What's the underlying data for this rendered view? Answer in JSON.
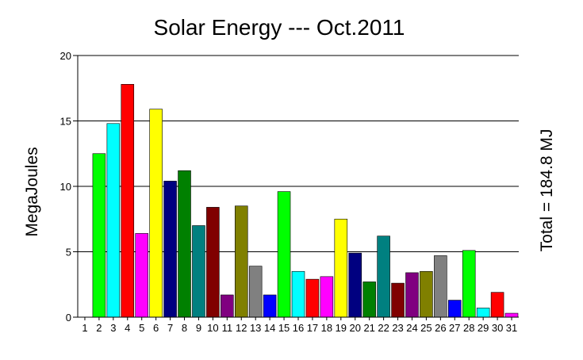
{
  "chart_data": {
    "type": "bar",
    "title": "Solar Energy --- Oct.2011",
    "ylabel": "MegaJoules",
    "right_label": "Total = 184.8 MJ",
    "xlabel": "",
    "ylim": [
      0,
      20
    ],
    "yticks": [
      0,
      5,
      10,
      15,
      20
    ],
    "grid": true,
    "categories": [
      "1",
      "2",
      "3",
      "4",
      "5",
      "6",
      "7",
      "8",
      "9",
      "10",
      "11",
      "12",
      "13",
      "14",
      "15",
      "16",
      "17",
      "18",
      "19",
      "20",
      "21",
      "22",
      "23",
      "24",
      "25",
      "26",
      "27",
      "28",
      "29",
      "30",
      "31"
    ],
    "values": [
      0,
      12.5,
      14.8,
      17.8,
      6.4,
      15.9,
      10.4,
      11.2,
      7.0,
      8.4,
      1.7,
      8.5,
      3.9,
      1.7,
      9.6,
      3.5,
      2.9,
      3.1,
      7.5,
      4.9,
      2.7,
      6.2,
      2.6,
      3.4,
      3.5,
      4.7,
      1.3,
      5.1,
      0.7,
      1.9,
      0.3
    ],
    "colors": [
      "#ff0000",
      "#00ff00",
      "#00ffff",
      "#ff0000",
      "#ff00ff",
      "#ffff00",
      "#000080",
      "#008000",
      "#008080",
      "#800000",
      "#800080",
      "#808000",
      "#808080",
      "#0000ff",
      "#00ff00",
      "#00ffff",
      "#ff0000",
      "#ff00ff",
      "#ffff00",
      "#000080",
      "#008000",
      "#008080",
      "#800000",
      "#800080",
      "#808000",
      "#808080",
      "#0000ff",
      "#00ff00",
      "#00ffff",
      "#ff0000",
      "#ff00ff"
    ]
  }
}
